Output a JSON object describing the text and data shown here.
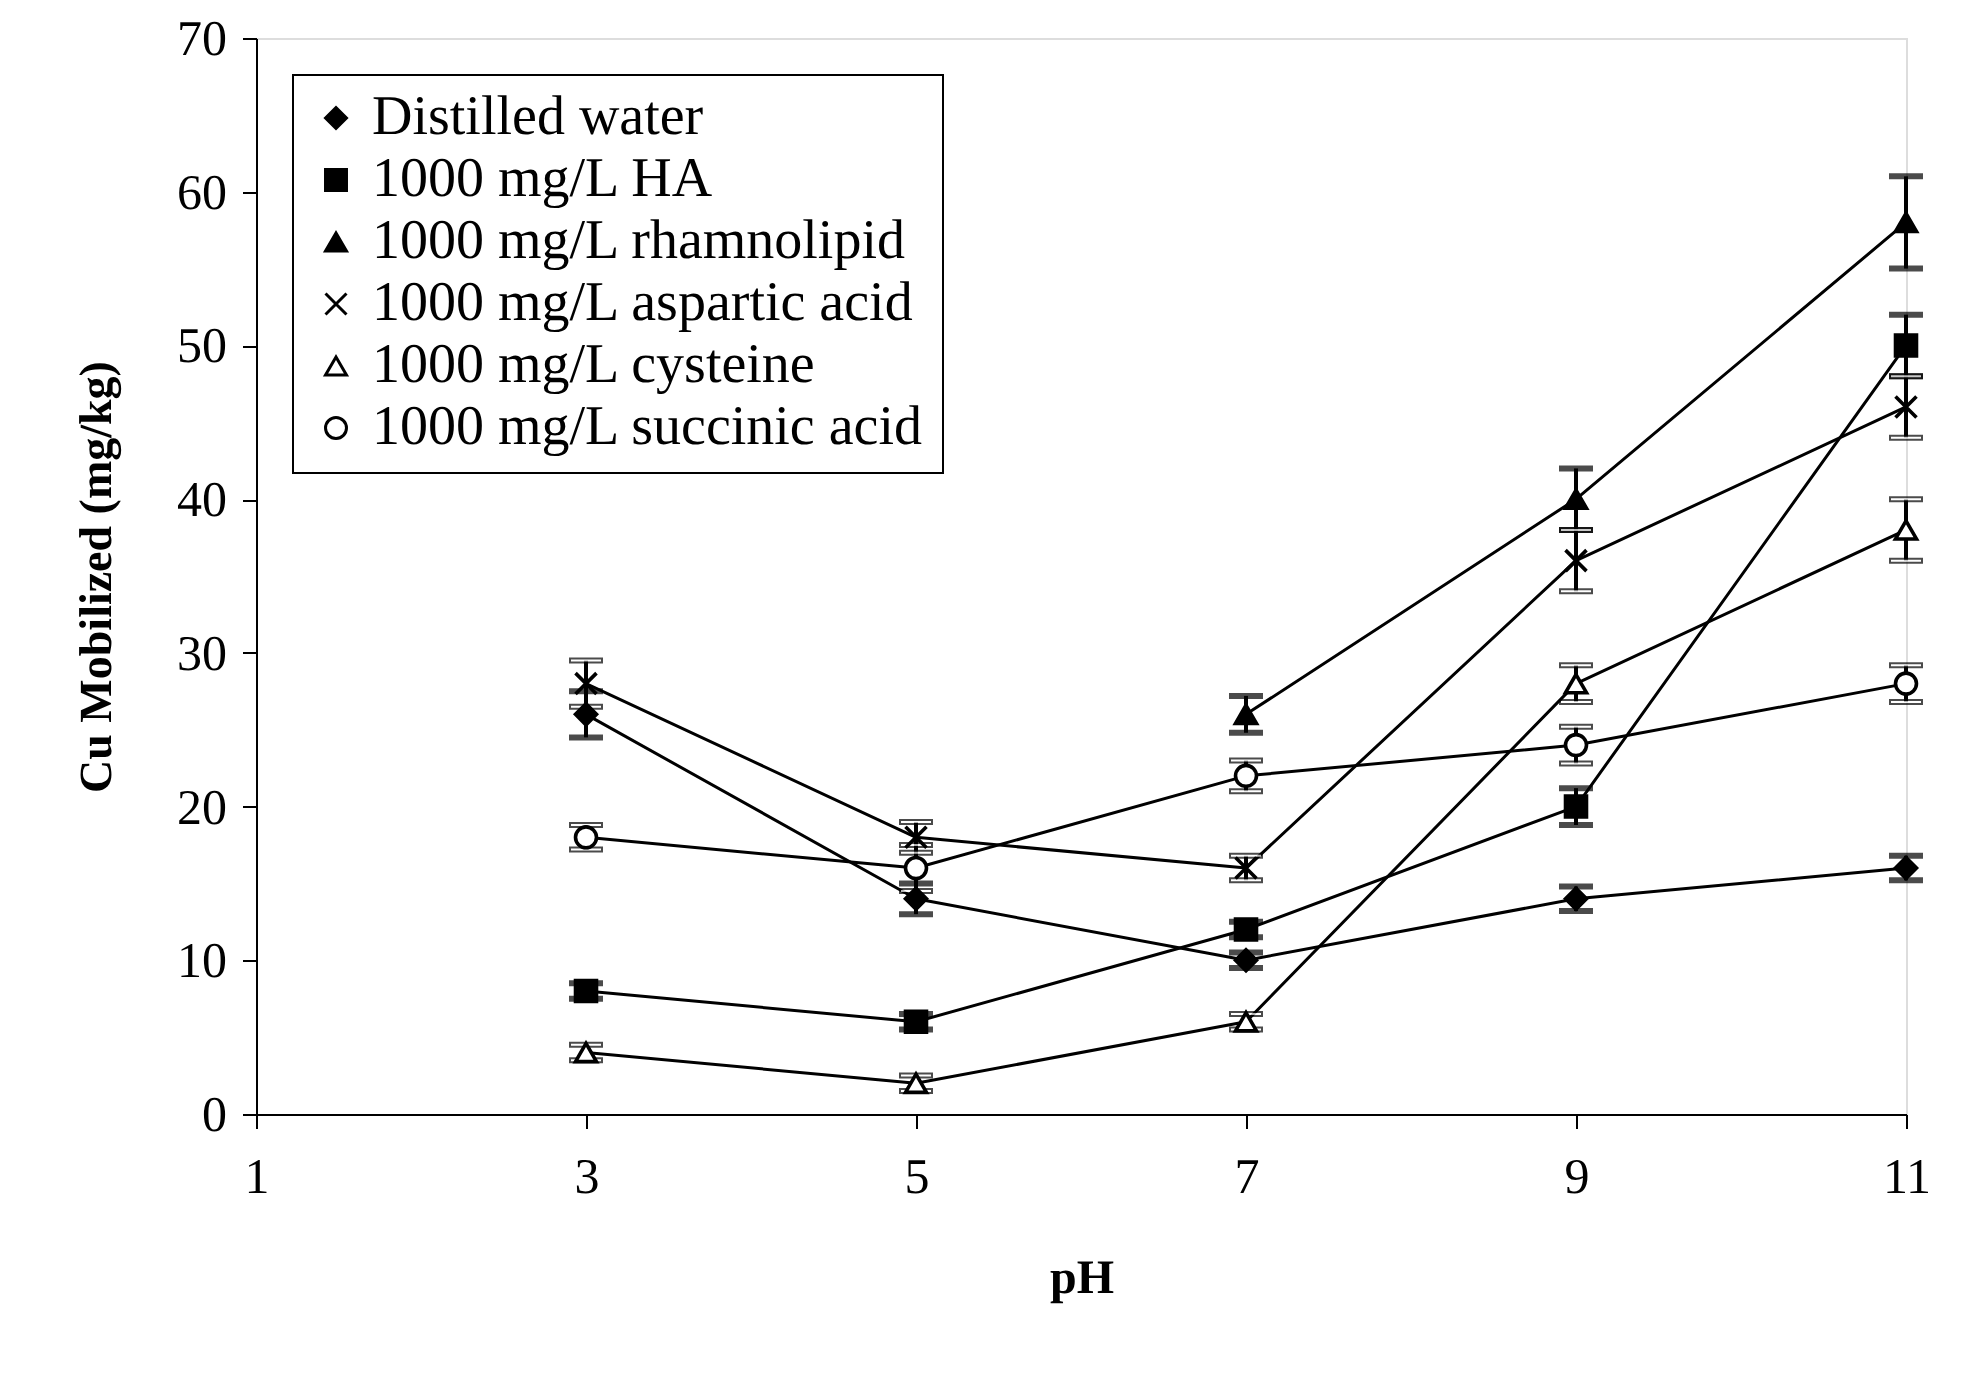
{
  "chart_data": {
    "type": "line",
    "xlabel": "pH",
    "ylabel": "Cu Mobilized (mg/kg)",
    "x": [
      3,
      5,
      7,
      9,
      11
    ],
    "xlim": [
      1,
      11
    ],
    "xticks": [
      1,
      3,
      5,
      7,
      9,
      11
    ],
    "ylim": [
      0,
      70
    ],
    "yticks": [
      0,
      10,
      20,
      30,
      40,
      50,
      60,
      70
    ],
    "grid": false,
    "legend": "top left",
    "line_style": "solid",
    "series": [
      {
        "name": "Distilled water",
        "color": "#000000",
        "marker": "diamond",
        "values": [
          26,
          14,
          10,
          14,
          16
        ],
        "errors": [
          1.5,
          1,
          0.5,
          0.8,
          0.8
        ]
      },
      {
        "name": "1000 mg/L HA",
        "color": "#000000",
        "marker": "square",
        "values": [
          8,
          6,
          12,
          20,
          50
        ],
        "errors": [
          0.5,
          0.5,
          0.5,
          1.2,
          2
        ]
      },
      {
        "name": "1000 mg/L rhamnolipid",
        "color": "#000000",
        "marker": "triangle",
        "values": [
          null,
          null,
          26,
          40,
          58
        ],
        "errors": [
          null,
          null,
          1.2,
          2,
          3
        ]
      },
      {
        "name": "1000 mg/L aspartic acid",
        "color": "#000000",
        "marker": "cross",
        "values": [
          28,
          18,
          16,
          36,
          46
        ],
        "errors": [
          1.5,
          1,
          0.8,
          2,
          2
        ]
      },
      {
        "name": "1000 mg/L cysteine",
        "color": "#000000",
        "marker": "triangle-open",
        "values": [
          4,
          2,
          6,
          28,
          38
        ],
        "errors": [
          0.5,
          0.5,
          0.5,
          1.2,
          2
        ]
      },
      {
        "name": "1000 mg/L succinic acid",
        "color": "#000000",
        "marker": "circle-open",
        "values": [
          18,
          16,
          22,
          24,
          28
        ],
        "errors": [
          0.8,
          1.5,
          1,
          1.2,
          1.2
        ]
      }
    ]
  }
}
